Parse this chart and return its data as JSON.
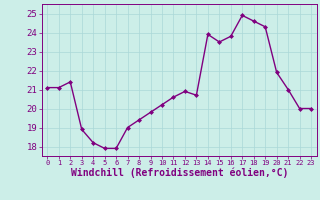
{
  "x": [
    0,
    1,
    2,
    3,
    4,
    5,
    6,
    7,
    8,
    9,
    10,
    11,
    12,
    13,
    14,
    15,
    16,
    17,
    18,
    19,
    20,
    21,
    22,
    23
  ],
  "y": [
    21.1,
    21.1,
    21.4,
    18.9,
    18.2,
    17.9,
    17.9,
    19.0,
    19.4,
    19.8,
    20.2,
    20.6,
    20.9,
    20.7,
    23.9,
    23.5,
    23.8,
    24.9,
    24.6,
    24.3,
    21.9,
    21.0,
    20.0,
    20.0
  ],
  "line_color": "#800080",
  "marker": "D",
  "marker_size": 2,
  "linewidth": 1.0,
  "xlabel": "Windchill (Refroidissement éolien,°C)",
  "xlabel_fontsize": 7,
  "ylim": [
    17.5,
    25.5
  ],
  "xlim": [
    -0.5,
    23.5
  ],
  "yticks": [
    18,
    19,
    20,
    21,
    22,
    23,
    24,
    25
  ],
  "xtick_labels": [
    "0",
    "1",
    "2",
    "3",
    "4",
    "5",
    "6",
    "7",
    "8",
    "9",
    "10",
    "11",
    "12",
    "13",
    "14",
    "15",
    "16",
    "17",
    "18",
    "19",
    "20",
    "21",
    "22",
    "23"
  ],
  "grid_color": "#aad8d8",
  "background_color": "#cceee8",
  "tick_color": "#800080",
  "tick_label_color": "#800080",
  "axis_label_color": "#800080",
  "ytick_fontsize": 6.5,
  "xtick_fontsize": 5.0
}
